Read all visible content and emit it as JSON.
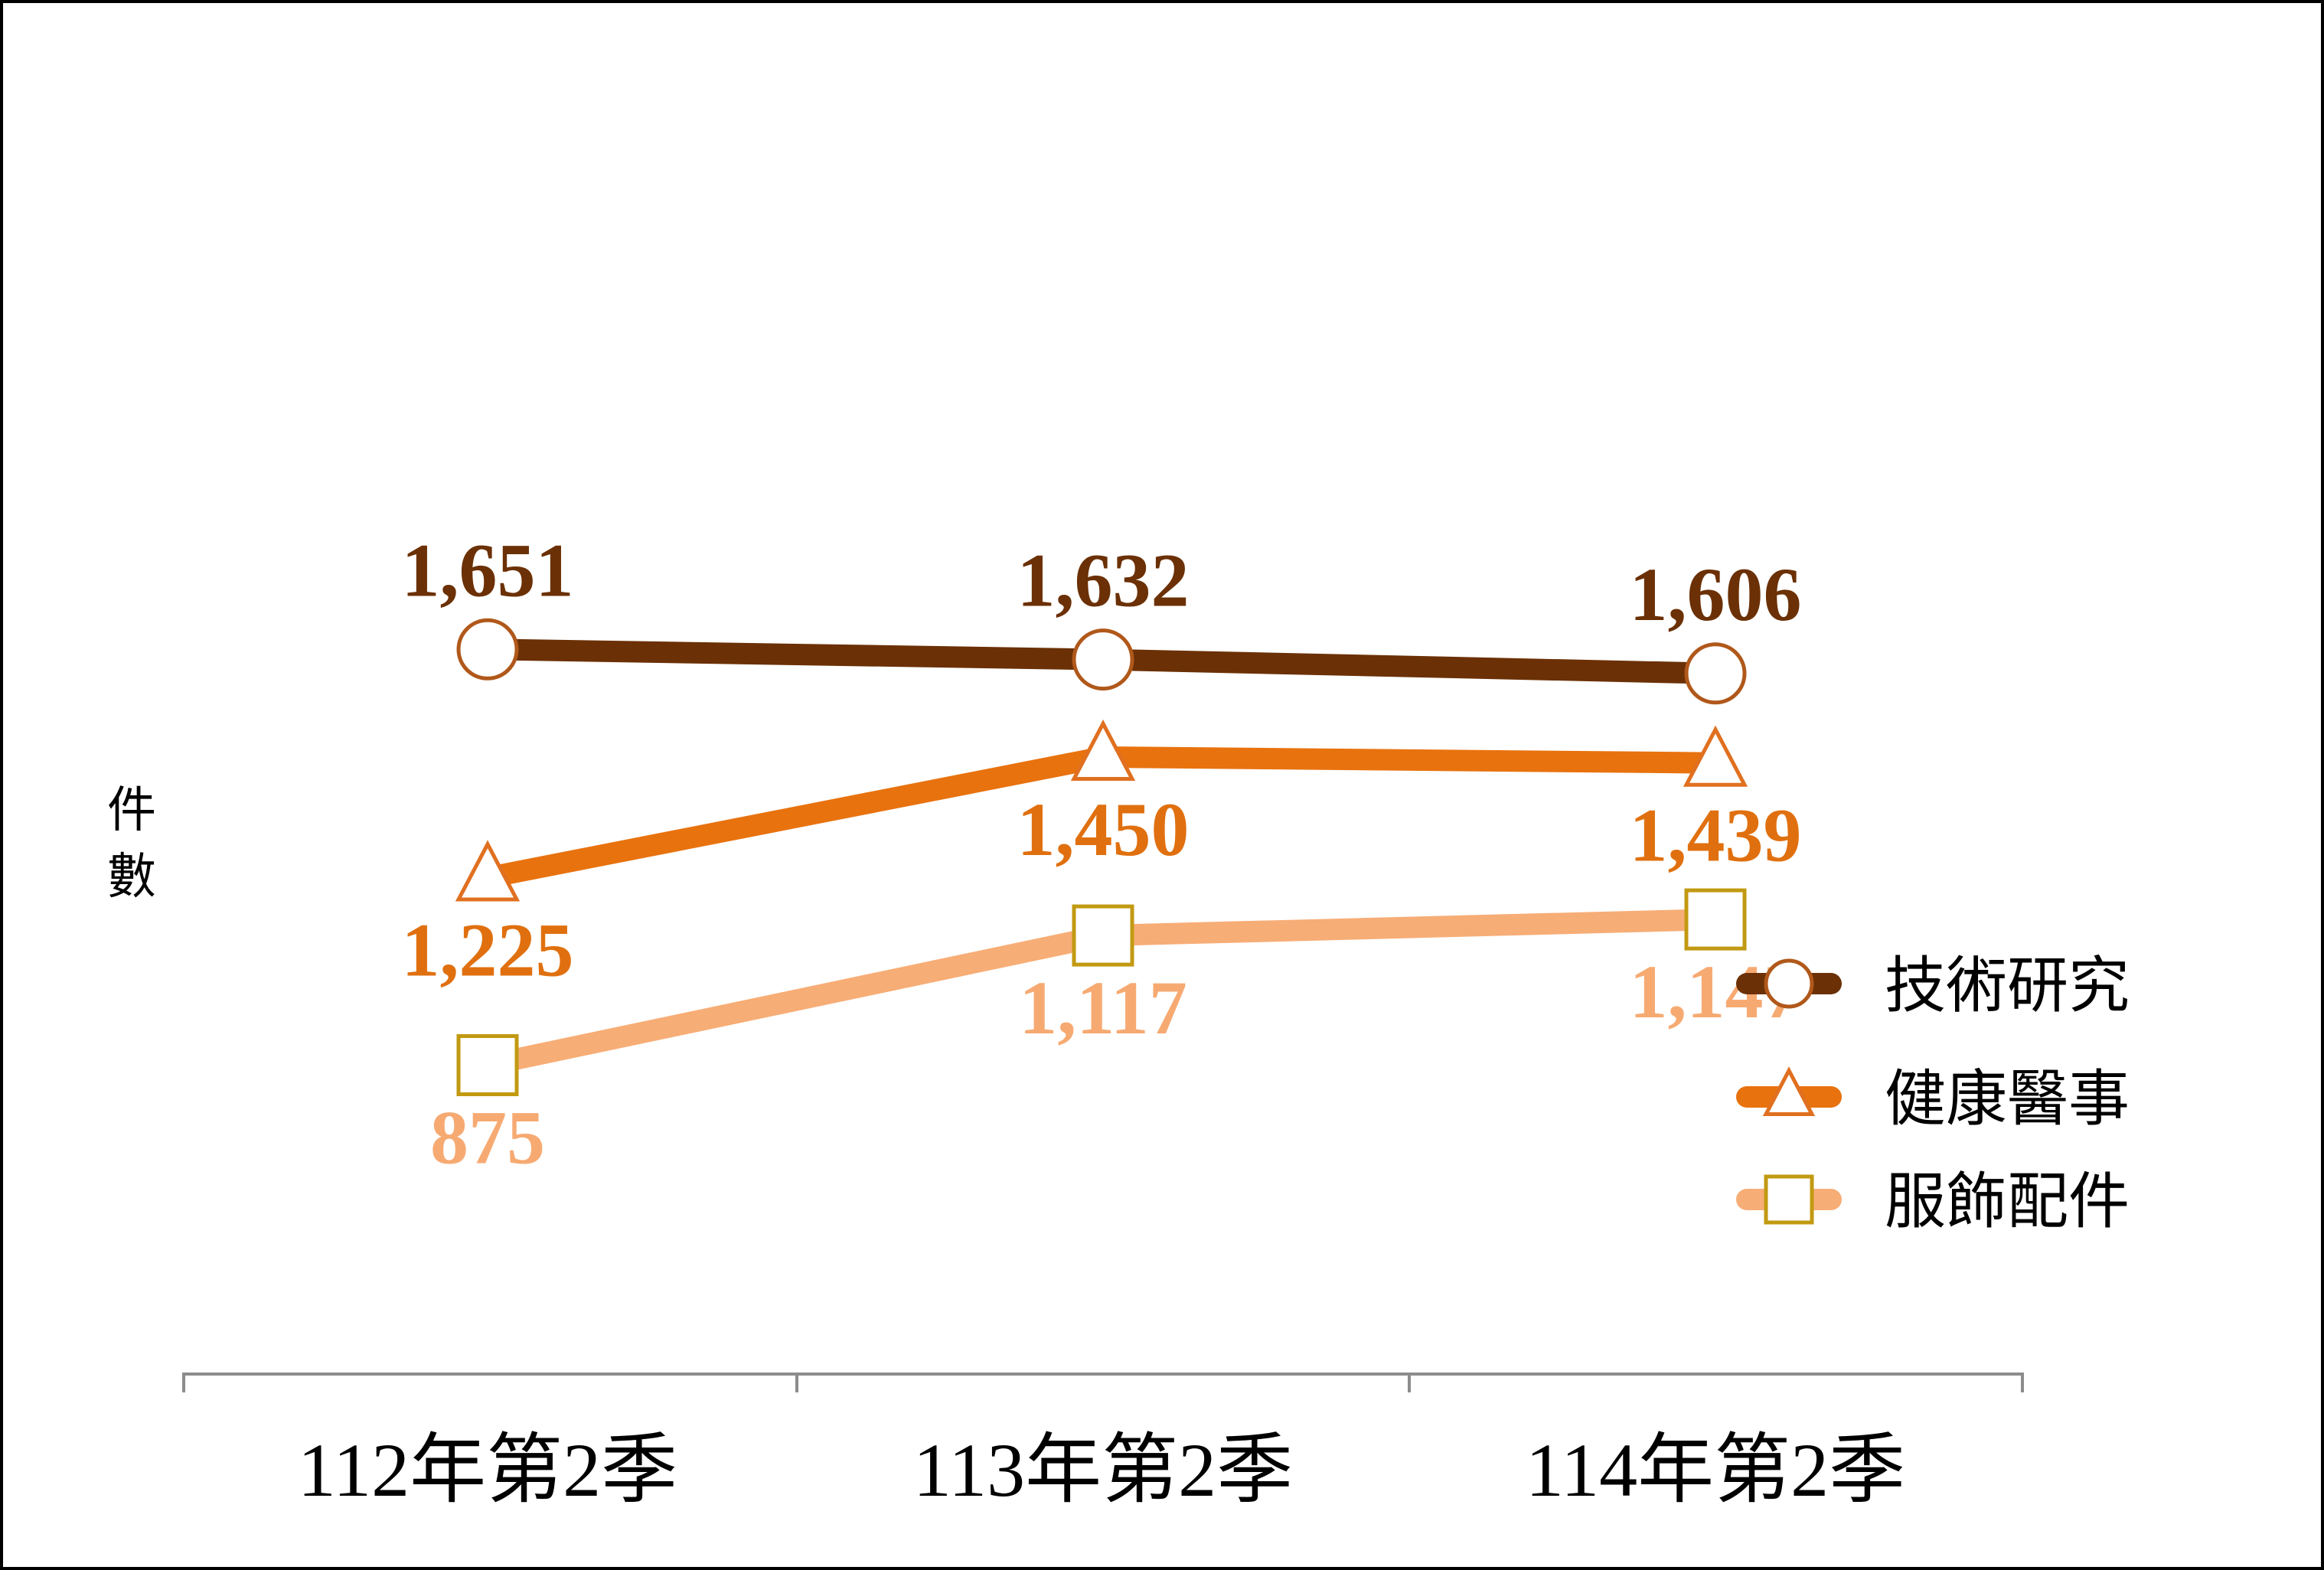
{
  "chart_data": {
    "type": "line",
    "categories": [
      "112年第2季",
      "113年第2季",
      "114年第2季"
    ],
    "ylabel": "件數",
    "ylabel_chars": [
      "件",
      "數"
    ],
    "ylim": [
      400,
      2000
    ],
    "grid": false,
    "legend_position": "right",
    "series": [
      {
        "name": "技術研究",
        "values": [
          1651,
          1632,
          1606
        ],
        "labels": [
          "1,651",
          "1,632",
          "1,606"
        ],
        "line_color": "#6B3005",
        "marker": "circle",
        "marker_edge": "#B0581A",
        "label_color": "#6B3005",
        "label_side": "above"
      },
      {
        "name": "健康醫事",
        "values": [
          1225,
          1450,
          1439
        ],
        "labels": [
          "1,225",
          "1,450",
          "1,439"
        ],
        "line_color": "#E8720E",
        "marker": "triangle",
        "marker_edge": "#E07020",
        "label_color": "#E0700F",
        "label_side": "below"
      },
      {
        "name": "服飾配件",
        "values": [
          875,
          1117,
          1147
        ],
        "labels": [
          "875",
          "1,117",
          "1,147"
        ],
        "line_color": "#F7AD76",
        "marker": "square",
        "marker_edge": "#C29A12",
        "label_color": "#F6AA72",
        "label_side": "below"
      }
    ]
  }
}
